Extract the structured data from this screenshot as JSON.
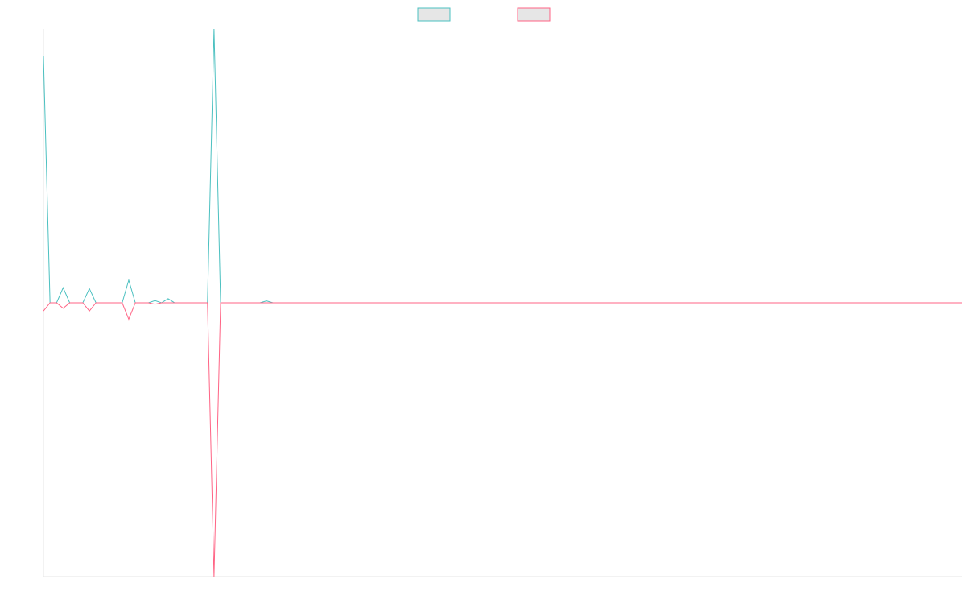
{
  "chart_data": {
    "type": "line",
    "title": "",
    "xlabel": "",
    "ylabel": "",
    "x_count": 141,
    "ylim": [
      -100,
      100
    ],
    "grid": false,
    "legend_placement": "top-center",
    "series": [
      {
        "color": "#4bc0c0",
        "points": [
          {
            "x": 0,
            "y": 90
          },
          {
            "x": 1,
            "y": 0
          },
          {
            "x": 2,
            "y": 0
          },
          {
            "x": 3,
            "y": 5.5
          },
          {
            "x": 4,
            "y": 0
          },
          {
            "x": 6,
            "y": 0
          },
          {
            "x": 7,
            "y": 5.2
          },
          {
            "x": 8,
            "y": 0
          },
          {
            "x": 12,
            "y": 0
          },
          {
            "x": 13,
            "y": 8.3
          },
          {
            "x": 14,
            "y": 0
          },
          {
            "x": 16,
            "y": 0
          },
          {
            "x": 17,
            "y": 0.8
          },
          {
            "x": 18,
            "y": 0
          },
          {
            "x": 19,
            "y": 1.5
          },
          {
            "x": 20,
            "y": 0
          },
          {
            "x": 25,
            "y": 0
          },
          {
            "x": 26,
            "y": 100
          },
          {
            "x": 27,
            "y": 0
          },
          {
            "x": 33,
            "y": 0
          },
          {
            "x": 34,
            "y": 0.7
          },
          {
            "x": 35,
            "y": 0
          },
          {
            "x": 140,
            "y": 0
          }
        ]
      },
      {
        "color": "#ff6384",
        "points": [
          {
            "x": 0,
            "y": -3
          },
          {
            "x": 1,
            "y": 0
          },
          {
            "x": 2,
            "y": 0
          },
          {
            "x": 3,
            "y": -2
          },
          {
            "x": 4,
            "y": 0
          },
          {
            "x": 6,
            "y": 0
          },
          {
            "x": 7,
            "y": -3
          },
          {
            "x": 8,
            "y": 0
          },
          {
            "x": 12,
            "y": 0
          },
          {
            "x": 13,
            "y": -6
          },
          {
            "x": 14,
            "y": 0
          },
          {
            "x": 16,
            "y": 0
          },
          {
            "x": 17,
            "y": -0.5
          },
          {
            "x": 18,
            "y": 0
          },
          {
            "x": 25,
            "y": 0
          },
          {
            "x": 26,
            "y": -100
          },
          {
            "x": 27,
            "y": 0
          },
          {
            "x": 140,
            "y": 0
          }
        ]
      }
    ]
  }
}
